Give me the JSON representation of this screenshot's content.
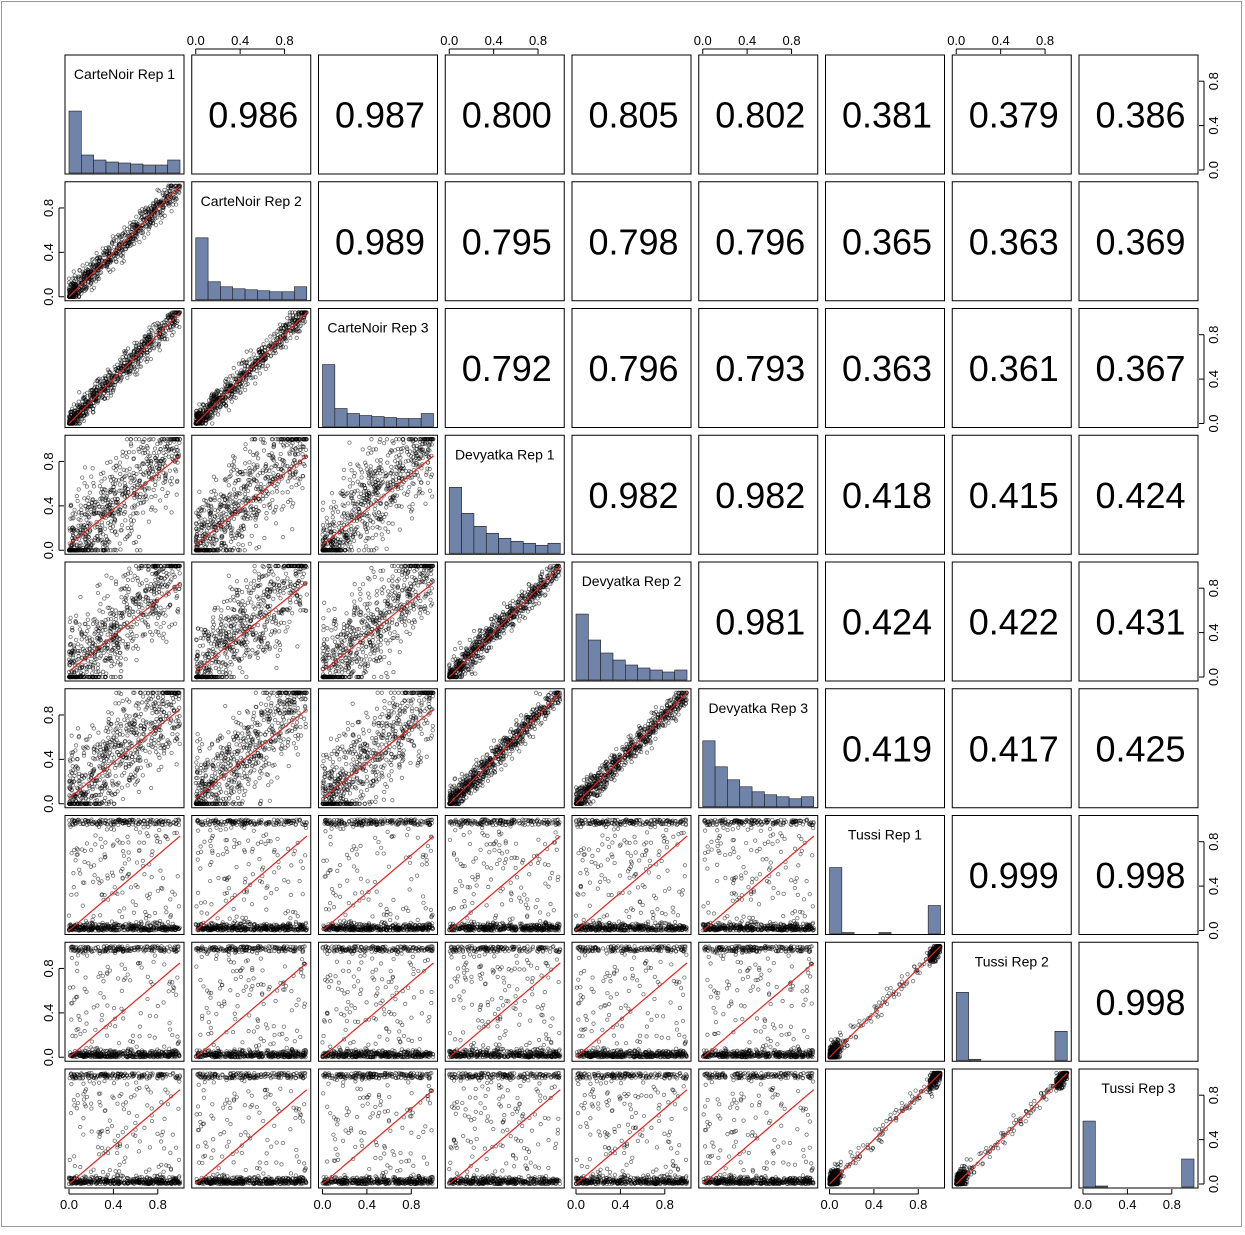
{
  "chart_data": {
    "type": "scatter-matrix",
    "title": "",
    "variables": [
      "CarteNoir Rep 1",
      "CarteNoir Rep 2",
      "CarteNoir Rep 3",
      "Devyatka Rep 1",
      "Devyatka Rep 2",
      "Devyatka Rep 3",
      "Tussi Rep 1",
      "Tussi Rep 2",
      "Tussi Rep 3"
    ],
    "correlations": [
      [
        null,
        "0.986",
        "0.987",
        "0.800",
        "0.805",
        "0.802",
        "0.381",
        "0.379",
        "0.386"
      ],
      [
        null,
        null,
        "0.989",
        "0.795",
        "0.798",
        "0.796",
        "0.365",
        "0.363",
        "0.369"
      ],
      [
        null,
        null,
        null,
        "0.792",
        "0.796",
        "0.793",
        "0.363",
        "0.361",
        "0.367"
      ],
      [
        null,
        null,
        null,
        null,
        "0.982",
        "0.982",
        "0.418",
        "0.415",
        "0.424"
      ],
      [
        null,
        null,
        null,
        null,
        null,
        "0.981",
        "0.424",
        "0.422",
        "0.431"
      ],
      [
        null,
        null,
        null,
        null,
        null,
        null,
        "0.419",
        "0.417",
        "0.425"
      ],
      [
        null,
        null,
        null,
        null,
        null,
        null,
        null,
        "0.999",
        "0.998"
      ],
      [
        null,
        null,
        null,
        null,
        null,
        null,
        null,
        null,
        "0.998"
      ],
      [
        null,
        null,
        null,
        null,
        null,
        null,
        null,
        null,
        null
      ]
    ],
    "histograms": [
      [
        0.62,
        0.18,
        0.13,
        0.11,
        0.1,
        0.09,
        0.08,
        0.08,
        0.13
      ],
      [
        0.62,
        0.18,
        0.13,
        0.11,
        0.1,
        0.09,
        0.08,
        0.08,
        0.13
      ],
      [
        0.62,
        0.18,
        0.13,
        0.11,
        0.1,
        0.09,
        0.08,
        0.08,
        0.13
      ],
      [
        0.66,
        0.4,
        0.27,
        0.2,
        0.15,
        0.12,
        0.1,
        0.08,
        0.1
      ],
      [
        0.66,
        0.4,
        0.27,
        0.2,
        0.15,
        0.12,
        0.1,
        0.08,
        0.1
      ],
      [
        0.66,
        0.4,
        0.27,
        0.2,
        0.15,
        0.12,
        0.1,
        0.08,
        0.1
      ],
      [
        0.66,
        0.01,
        0.0,
        0.0,
        0.01,
        0.0,
        0.0,
        0.0,
        0.28
      ],
      [
        0.68,
        0.01,
        0.0,
        0.0,
        0.0,
        0.0,
        0.0,
        0.0,
        0.29
      ],
      [
        0.66,
        0.01,
        0.0,
        0.0,
        0.0,
        0.0,
        0.0,
        0.0,
        0.28
      ]
    ],
    "axis_ticks": [
      "0.0",
      "0.4",
      "0.8"
    ],
    "axis_range": [
      0,
      1
    ],
    "point_color": "#000000",
    "fit_color": "#e8201c",
    "hist_fill": "#7083a8"
  }
}
